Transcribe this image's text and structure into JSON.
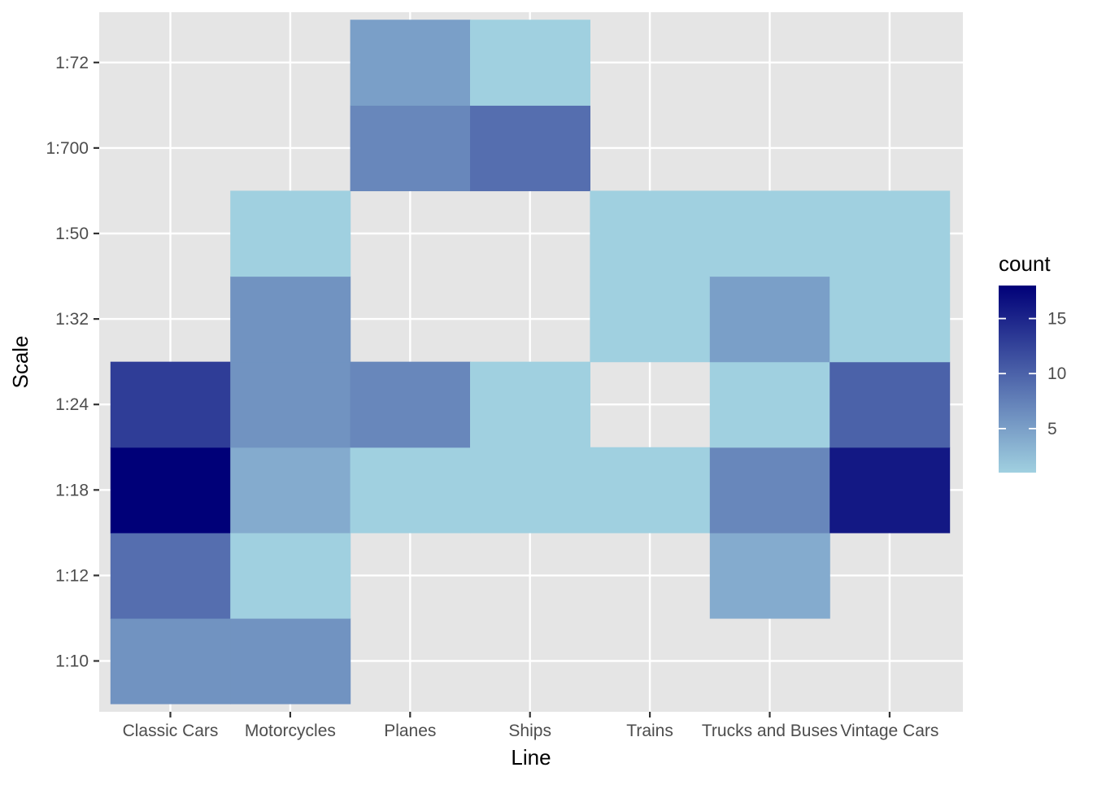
{
  "chart_data": {
    "type": "heatmap",
    "title": "",
    "xlabel": "Line",
    "ylabel": "Scale",
    "x_categories": [
      "Classic Cars",
      "Motorcycles",
      "Planes",
      "Ships",
      "Trains",
      "Trucks and Buses",
      "Vintage Cars"
    ],
    "y_categories": [
      "1:10",
      "1:12",
      "1:18",
      "1:24",
      "1:32",
      "1:50",
      "1:700",
      "1:72"
    ],
    "cells": [
      {
        "x": "Classic Cars",
        "y": "1:10",
        "count": 6
      },
      {
        "x": "Classic Cars",
        "y": "1:12",
        "count": 9
      },
      {
        "x": "Classic Cars",
        "y": "1:18",
        "count": 18
      },
      {
        "x": "Classic Cars",
        "y": "1:24",
        "count": 13
      },
      {
        "x": "Motorcycles",
        "y": "1:10",
        "count": 6
      },
      {
        "x": "Motorcycles",
        "y": "1:12",
        "count": 1
      },
      {
        "x": "Motorcycles",
        "y": "1:18",
        "count": 4
      },
      {
        "x": "Motorcycles",
        "y": "1:24",
        "count": 6
      },
      {
        "x": "Motorcycles",
        "y": "1:32",
        "count": 6
      },
      {
        "x": "Motorcycles",
        "y": "1:50",
        "count": 1
      },
      {
        "x": "Planes",
        "y": "1:18",
        "count": 1
      },
      {
        "x": "Planes",
        "y": "1:24",
        "count": 7
      },
      {
        "x": "Planes",
        "y": "1:700",
        "count": 7
      },
      {
        "x": "Planes",
        "y": "1:72",
        "count": 5
      },
      {
        "x": "Ships",
        "y": "1:18",
        "count": 1
      },
      {
        "x": "Ships",
        "y": "1:24",
        "count": 1
      },
      {
        "x": "Ships",
        "y": "1:700",
        "count": 9
      },
      {
        "x": "Ships",
        "y": "1:72",
        "count": 1
      },
      {
        "x": "Trains",
        "y": "1:18",
        "count": 1
      },
      {
        "x": "Trains",
        "y": "1:32",
        "count": 1
      },
      {
        "x": "Trains",
        "y": "1:50",
        "count": 1
      },
      {
        "x": "Trucks and Buses",
        "y": "1:12",
        "count": 4
      },
      {
        "x": "Trucks and Buses",
        "y": "1:18",
        "count": 7
      },
      {
        "x": "Trucks and Buses",
        "y": "1:24",
        "count": 1
      },
      {
        "x": "Trucks and Buses",
        "y": "1:32",
        "count": 5
      },
      {
        "x": "Trucks and Buses",
        "y": "1:50",
        "count": 1
      },
      {
        "x": "Vintage Cars",
        "y": "1:18",
        "count": 16
      },
      {
        "x": "Vintage Cars",
        "y": "1:24",
        "count": 10
      },
      {
        "x": "Vintage Cars",
        "y": "1:32",
        "count": 1
      },
      {
        "x": "Vintage Cars",
        "y": "1:50",
        "count": 1
      }
    ],
    "legend": {
      "title": "count",
      "ticks": [
        5,
        10,
        15
      ],
      "min": 1,
      "max": 18,
      "placement": "right",
      "low_color": "#a0d0e0",
      "high_color": "#000078"
    },
    "grid": true,
    "panel_color": "#e5e5e5",
    "gridline_color": "#ffffff"
  }
}
